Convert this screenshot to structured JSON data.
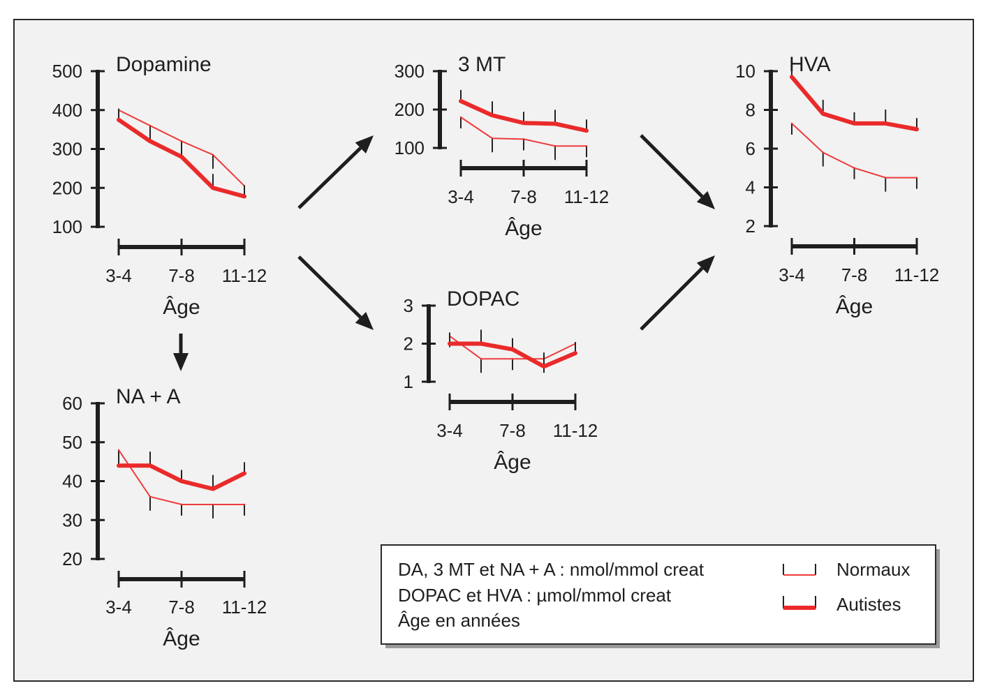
{
  "chart_data": [
    {
      "id": "dopamine",
      "type": "line",
      "title": "Dopamine",
      "xlabel": "Âge",
      "x_tick_labels": [
        "3-4",
        "7-8",
        "11-12"
      ],
      "ylim": [
        100,
        500
      ],
      "y_ticks": [
        "100",
        "200",
        "300",
        "400",
        "500"
      ],
      "series": [
        {
          "role": "normaux",
          "values": [
            400,
            360,
            320,
            285,
            205
          ]
        },
        {
          "role": "autistes",
          "values": [
            375,
            320,
            280,
            200,
            178
          ]
        }
      ]
    },
    {
      "id": "3mt",
      "type": "line",
      "title": "3 MT",
      "xlabel": "Âge",
      "x_tick_labels": [
        "3-4",
        "7-8",
        "11-12"
      ],
      "ylim": [
        100,
        300
      ],
      "y_ticks": [
        "100",
        "200",
        "300"
      ],
      "series": [
        {
          "role": "normaux",
          "values": [
            180,
            125,
            123,
            105,
            105
          ]
        },
        {
          "role": "autistes",
          "values": [
            222,
            185,
            165,
            163,
            145
          ]
        }
      ]
    },
    {
      "id": "hva",
      "type": "line",
      "title": "HVA",
      "xlabel": "Âge",
      "x_tick_labels": [
        "3-4",
        "7-8",
        "11-12"
      ],
      "ylim": [
        2,
        10
      ],
      "y_ticks": [
        "2",
        "4",
        "6",
        "8",
        "10"
      ],
      "series": [
        {
          "role": "normaux",
          "values": [
            7.3,
            5.8,
            5.0,
            4.5,
            4.5
          ]
        },
        {
          "role": "autistes",
          "values": [
            9.7,
            7.8,
            7.3,
            7.3,
            7.0
          ]
        }
      ]
    },
    {
      "id": "dopac",
      "type": "line",
      "title": "DOPAC",
      "xlabel": "Âge",
      "x_tick_labels": [
        "3-4",
        "7-8",
        "11-12"
      ],
      "ylim": [
        1,
        3
      ],
      "y_ticks": [
        "1",
        "2",
        "3"
      ],
      "series": [
        {
          "role": "normaux",
          "values": [
            2.2,
            1.6,
            1.6,
            1.6,
            2.0
          ]
        },
        {
          "role": "autistes",
          "values": [
            2.0,
            2.0,
            1.85,
            1.4,
            1.75
          ]
        }
      ]
    },
    {
      "id": "naa",
      "type": "line",
      "title": "NA + A",
      "xlabel": "Âge",
      "x_tick_labels": [
        "3-4",
        "7-8",
        "11-12"
      ],
      "ylim": [
        20,
        60
      ],
      "y_ticks": [
        "20",
        "30",
        "40",
        "50",
        "60"
      ],
      "series": [
        {
          "role": "normaux",
          "values": [
            48,
            36,
            34,
            34,
            34
          ]
        },
        {
          "role": "autistes",
          "values": [
            44,
            44,
            40,
            38,
            42
          ]
        }
      ]
    }
  ],
  "legend": {
    "units_lines": [
      "DA, 3 MT et NA + A : nmol/mmol creat",
      "DOPAC et HVA : µmol/mmol creat",
      "Âge en années"
    ],
    "normaux_label": "Normaux",
    "autistes_label": "Autistes"
  },
  "colors": {
    "series": "#ea2a2a",
    "axis": "#1e1e1e",
    "background": "#f2f2f2"
  }
}
